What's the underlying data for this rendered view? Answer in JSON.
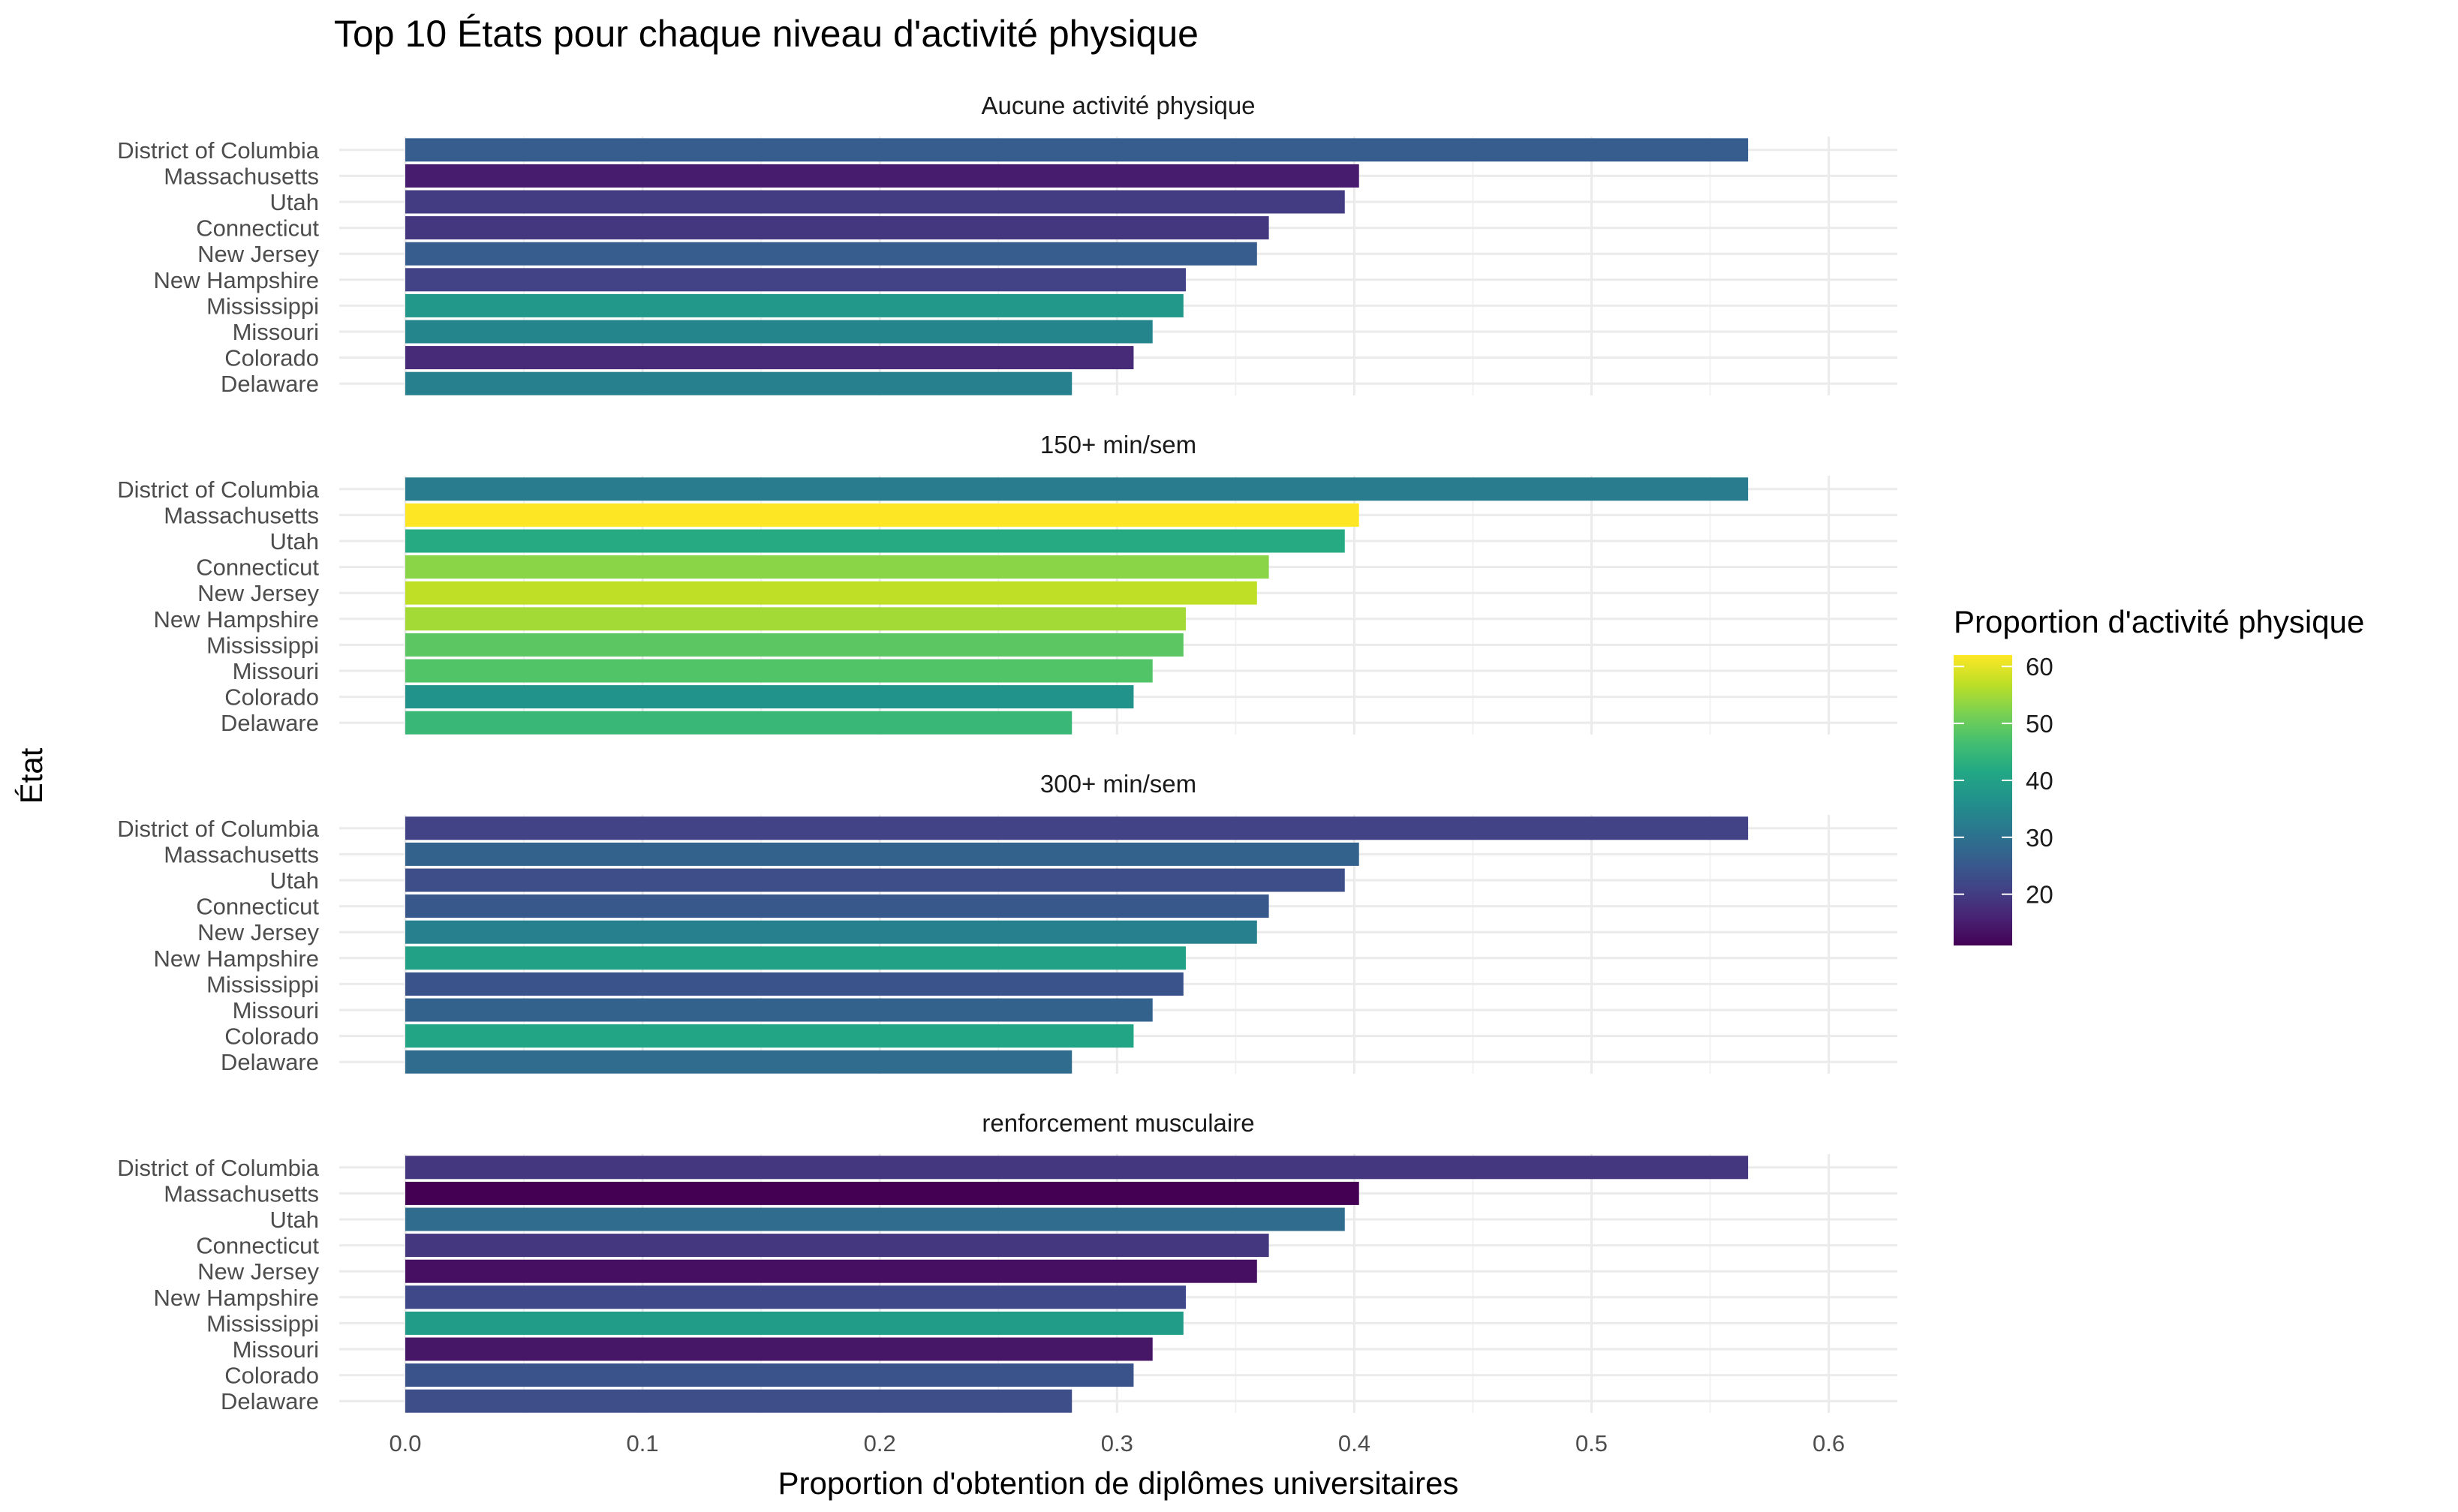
{
  "chart_data": {
    "type": "bar",
    "orientation": "horizontal",
    "title": "Top 10 États pour chaque niveau d'activité physique",
    "xlabel": "Proportion d'obtention de diplômes universitaires",
    "ylabel": "État",
    "xlim": [
      0,
      0.63
    ],
    "xticks": [
      "0.0",
      "0.1",
      "0.2",
      "0.3",
      "0.4",
      "0.5",
      "0.6"
    ],
    "grid": true,
    "legend_position": "right",
    "categories": [
      "District of Columbia",
      "Massachusetts",
      "Utah",
      "Connecticut",
      "New Jersey",
      "New Hampshire",
      "Mississippi",
      "Missouri",
      "Colorado",
      "Delaware"
    ],
    "values": [
      0.566,
      0.402,
      0.396,
      0.364,
      0.359,
      0.329,
      0.328,
      0.315,
      0.307,
      0.281
    ],
    "facets": [
      {
        "name": "Aucune activité physique",
        "fill_values": [
          26,
          15,
          20,
          19,
          26,
          21,
          38,
          34,
          17,
          33
        ]
      },
      {
        "name": "150+ min/sem",
        "fill_values": [
          32,
          62,
          42,
          53,
          57,
          55,
          49,
          48,
          37,
          45
        ]
      },
      {
        "name": "300+ min/sem",
        "fill_values": [
          21,
          27,
          23,
          25,
          33,
          40,
          24,
          27,
          41,
          29
        ]
      },
      {
        "name": "renforcement musculaire",
        "fill_values": [
          19,
          11,
          29,
          19,
          13,
          22,
          39,
          14,
          24,
          23
        ]
      }
    ],
    "color_scale": {
      "title": "Proportion d'activité physique",
      "palette": "viridis",
      "min": 11,
      "max": 62,
      "ticks": [
        20,
        30,
        40,
        50,
        60
      ]
    }
  }
}
